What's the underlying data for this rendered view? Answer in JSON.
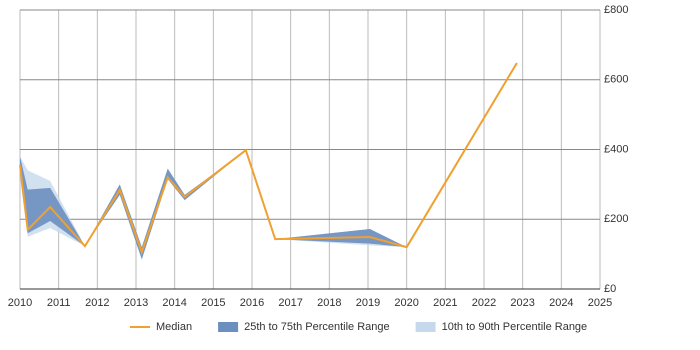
{
  "chart_data": {
    "type": "range-line",
    "x": [
      2010.0,
      2010.2,
      2010.78,
      2011.68,
      2012.58,
      2013.15,
      2013.82,
      2014.26,
      2015.84,
      2016.6,
      2019.05,
      2020.0,
      2022.85
    ],
    "series": [
      {
        "name": "10th to 90th Percentile Range",
        "color": "#c6d9ec",
        "low": [
          320,
          150,
          175,
          123,
          270,
          85,
          315,
          255,
          398,
          143,
          125,
          120,
          648
        ],
        "high": [
          380,
          340,
          310,
          123,
          300,
          120,
          345,
          270,
          398,
          143,
          172,
          120,
          648
        ]
      },
      {
        "name": "25th to 75th Percentile Range",
        "color": "#6b8fbf",
        "low": [
          330,
          160,
          195,
          123,
          270,
          85,
          315,
          255,
          398,
          143,
          130,
          120,
          648
        ],
        "high": [
          380,
          285,
          290,
          123,
          300,
          120,
          345,
          270,
          398,
          143,
          172,
          120,
          648
        ]
      },
      {
        "name": "Median",
        "color": "#f0a030",
        "values": [
          355,
          170,
          235,
          123,
          284,
          106,
          320,
          264,
          398,
          143,
          149,
          120,
          648
        ]
      }
    ],
    "xlim": [
      2010,
      2025
    ],
    "xticks": [
      2010,
      2011,
      2012,
      2013,
      2014,
      2015,
      2016,
      2017,
      2018,
      2019,
      2020,
      2021,
      2022,
      2023,
      2024,
      2025
    ],
    "ylim": [
      0,
      800
    ],
    "yticks": [
      {
        "value": 0,
        "label": "£0"
      },
      {
        "value": 200,
        "label": "£200"
      },
      {
        "value": 400,
        "label": "£400"
      },
      {
        "value": 600,
        "label": "£600"
      },
      {
        "value": 800,
        "label": "£800"
      }
    ],
    "grid": true
  }
}
